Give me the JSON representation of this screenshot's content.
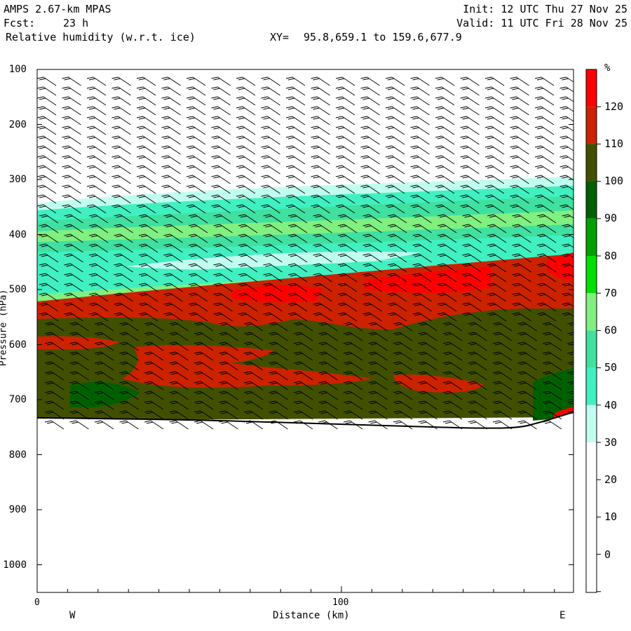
{
  "header": {
    "model": "AMPS 2.67-km MPAS",
    "forecast_label": "Fcst:",
    "forecast_value": "23 h",
    "field": "Relative humidity (w.r.t. ice)",
    "xy_label": "XY=",
    "xy_value": "95.8,659.1 to 159.6,677.9",
    "init": "Init: 12 UTC Thu 27 Nov 25",
    "valid": "Valid: 11 UTC Fri 28 Nov 25"
  },
  "axes": {
    "ylabel": "Pressure (hPa)",
    "xlabel": "Distance (km)",
    "west": "W",
    "east": "E",
    "yticks": [
      "100",
      "200",
      "300",
      "400",
      "500",
      "600",
      "700",
      "800",
      "900",
      "1000"
    ],
    "xticks": [
      "0",
      "100"
    ]
  },
  "colorbar": {
    "unit": "%",
    "labels": [
      "120",
      "110",
      "100",
      "90",
      "80",
      "70",
      "60",
      "50",
      "40",
      "30",
      "20",
      "10",
      "0"
    ],
    "colors": [
      "#ff0000",
      "#cc2200",
      "#405000",
      "#006000",
      "#00a000",
      "#00e000",
      "#80f080",
      "#40e0a0",
      "#40f0c0",
      "#c0fff0",
      "#ffffff",
      "#ffffff",
      "#ffffff",
      "#ffffff",
      "#ffffff"
    ]
  },
  "chart_data": {
    "type": "heatmap",
    "title": "Relative humidity (w.r.t. ice)",
    "xlabel": "Distance (km)",
    "ylabel": "Pressure (hPa)",
    "xlim": [
      0,
      176
    ],
    "ylim": [
      1050,
      100
    ],
    "y_scale": "linear",
    "levels": [
      0,
      10,
      20,
      30,
      40,
      50,
      60,
      70,
      80,
      90,
      100,
      110,
      120
    ],
    "units": "%",
    "terrain_pressure_hPa": [
      [
        0,
        734
      ],
      [
        40,
        734
      ],
      [
        80,
        738
      ],
      [
        120,
        744
      ],
      [
        150,
        748
      ],
      [
        160,
        745
      ],
      [
        176,
        730
      ]
    ],
    "layers": [
      {
        "rh_range": "30-60",
        "top_hPa": [
          [
            0,
            330
          ],
          [
            176,
            305
          ]
        ],
        "bottom_hPa": [
          [
            0,
            500
          ],
          [
            70,
            470
          ],
          [
            176,
            430
          ]
        ]
      },
      {
        "rh_range": "100-120",
        "top_hPa": [
          [
            0,
            515
          ],
          [
            70,
            490
          ],
          [
            120,
            470
          ],
          [
            176,
            450
          ]
        ],
        "bottom_hPa": [
          [
            0,
            550
          ],
          [
            176,
            535
          ]
        ]
      },
      {
        "rh_range": ">120",
        "location": "near 80-150 km",
        "pressure_hPa": [
          470,
          515
        ]
      },
      {
        "rh_range": "100-110",
        "top_hPa": [
          [
            0,
            550
          ],
          [
            176,
            530
          ]
        ],
        "bottom": "terrain"
      }
    ],
    "wind_barbs": "shown at all levels above terrain",
    "grid": false,
    "legend": "colorbar right"
  }
}
